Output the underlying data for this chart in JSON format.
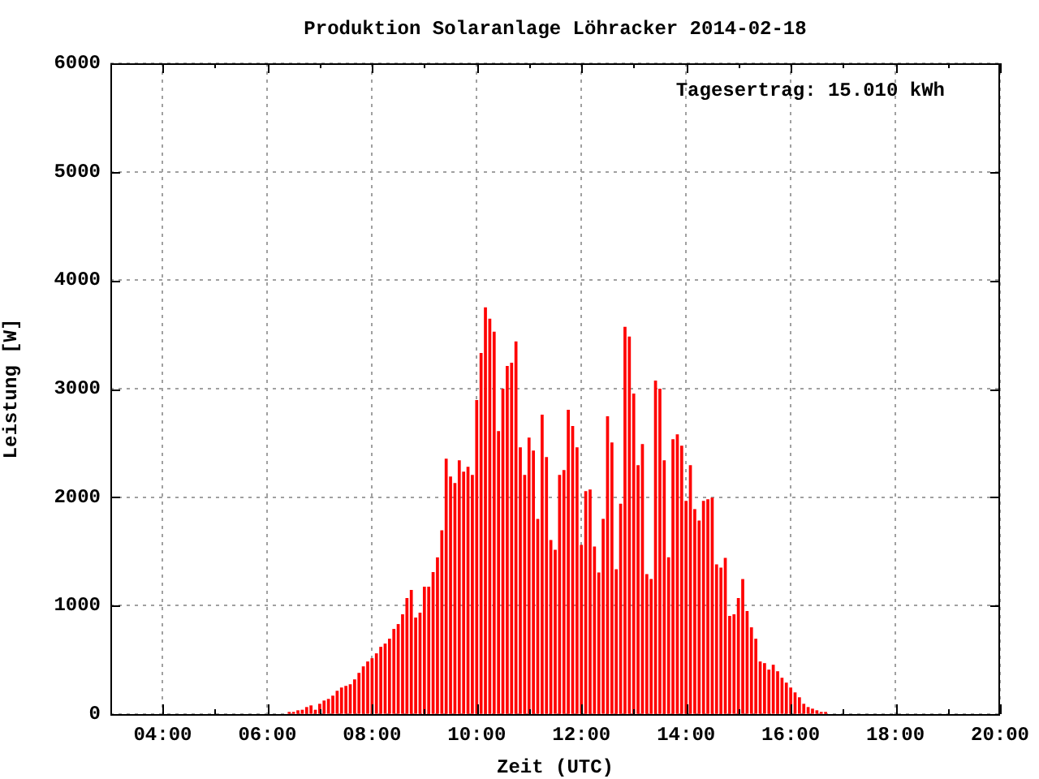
{
  "chart_data": {
    "type": "bar",
    "title": "Produktion Solaranlage Löhracker 2014-02-18",
    "xlabel": "Zeit (UTC)",
    "ylabel": "Leistung [W]",
    "annotations": [
      "Tagesertrag: 15.010 kWh"
    ],
    "x": [
      "2014-02-18T06:25",
      "2014-02-18T06:30",
      "2014-02-18T06:35",
      "2014-02-18T06:40",
      "2014-02-18T06:45",
      "2014-02-18T06:50",
      "2014-02-18T06:55",
      "2014-02-18T07:00",
      "2014-02-18T07:05",
      "2014-02-18T07:10",
      "2014-02-18T07:15",
      "2014-02-18T07:20",
      "2014-02-18T07:25",
      "2014-02-18T07:30",
      "2014-02-18T07:35",
      "2014-02-18T07:40",
      "2014-02-18T07:45",
      "2014-02-18T07:50",
      "2014-02-18T07:55",
      "2014-02-18T08:00",
      "2014-02-18T08:05",
      "2014-02-18T08:10",
      "2014-02-18T08:15",
      "2014-02-18T08:20",
      "2014-02-18T08:25",
      "2014-02-18T08:30",
      "2014-02-18T08:35",
      "2014-02-18T08:40",
      "2014-02-18T08:45",
      "2014-02-18T08:50",
      "2014-02-18T08:55",
      "2014-02-18T09:00",
      "2014-02-18T09:05",
      "2014-02-18T09:10",
      "2014-02-18T09:15",
      "2014-02-18T09:20",
      "2014-02-18T09:25",
      "2014-02-18T09:30",
      "2014-02-18T09:35",
      "2014-02-18T09:40",
      "2014-02-18T09:45",
      "2014-02-18T09:50",
      "2014-02-18T09:55",
      "2014-02-18T10:00",
      "2014-02-18T10:05",
      "2014-02-18T10:10",
      "2014-02-18T10:15",
      "2014-02-18T10:20",
      "2014-02-18T10:25",
      "2014-02-18T10:30",
      "2014-02-18T10:35",
      "2014-02-18T10:40",
      "2014-02-18T10:45",
      "2014-02-18T10:50",
      "2014-02-18T10:55",
      "2014-02-18T11:00",
      "2014-02-18T11:05",
      "2014-02-18T11:10",
      "2014-02-18T11:15",
      "2014-02-18T11:20",
      "2014-02-18T11:25",
      "2014-02-18T11:30",
      "2014-02-18T11:35",
      "2014-02-18T11:40",
      "2014-02-18T11:45",
      "2014-02-18T11:50",
      "2014-02-18T11:55",
      "2014-02-18T12:00",
      "2014-02-18T12:05",
      "2014-02-18T12:10",
      "2014-02-18T12:15",
      "2014-02-18T12:20",
      "2014-02-18T12:25",
      "2014-02-18T12:30",
      "2014-02-18T12:35",
      "2014-02-18T12:40",
      "2014-02-18T12:45",
      "2014-02-18T12:50",
      "2014-02-18T12:55",
      "2014-02-18T13:00",
      "2014-02-18T13:05",
      "2014-02-18T13:10",
      "2014-02-18T13:15",
      "2014-02-18T13:20",
      "2014-02-18T13:25",
      "2014-02-18T13:30",
      "2014-02-18T13:35",
      "2014-02-18T13:40",
      "2014-02-18T13:45",
      "2014-02-18T13:50",
      "2014-02-18T13:55",
      "2014-02-18T14:00",
      "2014-02-18T14:05",
      "2014-02-18T14:10",
      "2014-02-18T14:15",
      "2014-02-18T14:20",
      "2014-02-18T14:25",
      "2014-02-18T14:30",
      "2014-02-18T14:35",
      "2014-02-18T14:40",
      "2014-02-18T14:45",
      "2014-02-18T14:50",
      "2014-02-18T14:55",
      "2014-02-18T15:00",
      "2014-02-18T15:05",
      "2014-02-18T15:10",
      "2014-02-18T15:15",
      "2014-02-18T15:20",
      "2014-02-18T15:25",
      "2014-02-18T15:30",
      "2014-02-18T15:35",
      "2014-02-18T15:40",
      "2014-02-18T15:45",
      "2014-02-18T15:50",
      "2014-02-18T15:55",
      "2014-02-18T16:00",
      "2014-02-18T16:05",
      "2014-02-18T16:10",
      "2014-02-18T16:15",
      "2014-02-18T16:20",
      "2014-02-18T16:25",
      "2014-02-18T16:30",
      "2014-02-18T16:35",
      "2014-02-18T16:40"
    ],
    "values": [
      15,
      15,
      30,
      35,
      60,
      75,
      35,
      90,
      120,
      135,
      165,
      210,
      240,
      255,
      270,
      315,
      375,
      435,
      480,
      510,
      555,
      615,
      645,
      690,
      780,
      825,
      915,
      1065,
      1140,
      885,
      930,
      1170,
      1170,
      1305,
      1440,
      1690,
      2350,
      2185,
      2125,
      2335,
      2230,
      2275,
      2200,
      2890,
      3325,
      3745,
      3640,
      3520,
      2605,
      2995,
      3205,
      3235,
      3430,
      2455,
      2200,
      2545,
      2425,
      1795,
      2755,
      2365,
      1600,
      1510,
      2200,
      2245,
      2800,
      2650,
      2455,
      1555,
      2050,
      2065,
      1540,
      1300,
      1795,
      2740,
      2500,
      1330,
      1935,
      3565,
      3475,
      2950,
      2290,
      2485,
      1285,
      1240,
      3070,
      2995,
      2335,
      1440,
      2530,
      2575,
      2470,
      1960,
      2290,
      1885,
      1780,
      1960,
      1975,
      1990,
      1375,
      1345,
      1435,
      900,
      915,
      1065,
      1240,
      945,
      795,
      690,
      480,
      465,
      405,
      450,
      390,
      330,
      285,
      240,
      195,
      150,
      90,
      60,
      45,
      30,
      15,
      15
    ],
    "color": "#ff0000",
    "xlim": [
      "2014-02-18T03:00",
      "2014-02-18T20:00"
    ],
    "xticks": [
      {
        "value": "2014-02-18T04:00",
        "label": "04:00"
      },
      {
        "value": "2014-02-18T05:00",
        "label": null
      },
      {
        "value": "2014-02-18T06:00",
        "label": "06:00"
      },
      {
        "value": "2014-02-18T07:00",
        "label": null
      },
      {
        "value": "2014-02-18T08:00",
        "label": "08:00"
      },
      {
        "value": "2014-02-18T09:00",
        "label": null
      },
      {
        "value": "2014-02-18T10:00",
        "label": "10:00"
      },
      {
        "value": "2014-02-18T11:00",
        "label": null
      },
      {
        "value": "2014-02-18T12:00",
        "label": "12:00"
      },
      {
        "value": "2014-02-18T13:00",
        "label": null
      },
      {
        "value": "2014-02-18T14:00",
        "label": "14:00"
      },
      {
        "value": "2014-02-18T15:00",
        "label": null
      },
      {
        "value": "2014-02-18T16:00",
        "label": "16:00"
      },
      {
        "value": "2014-02-18T17:00",
        "label": null
      },
      {
        "value": "2014-02-18T18:00",
        "label": "18:00"
      },
      {
        "value": "2014-02-18T19:00",
        "label": null
      },
      {
        "value": "2014-02-18T20:00",
        "label": "20:00"
      }
    ],
    "ylim": [
      0,
      6000
    ],
    "yticks": [
      0,
      1000,
      2000,
      3000,
      4000,
      5000,
      6000
    ],
    "grid": true,
    "legend": false
  }
}
